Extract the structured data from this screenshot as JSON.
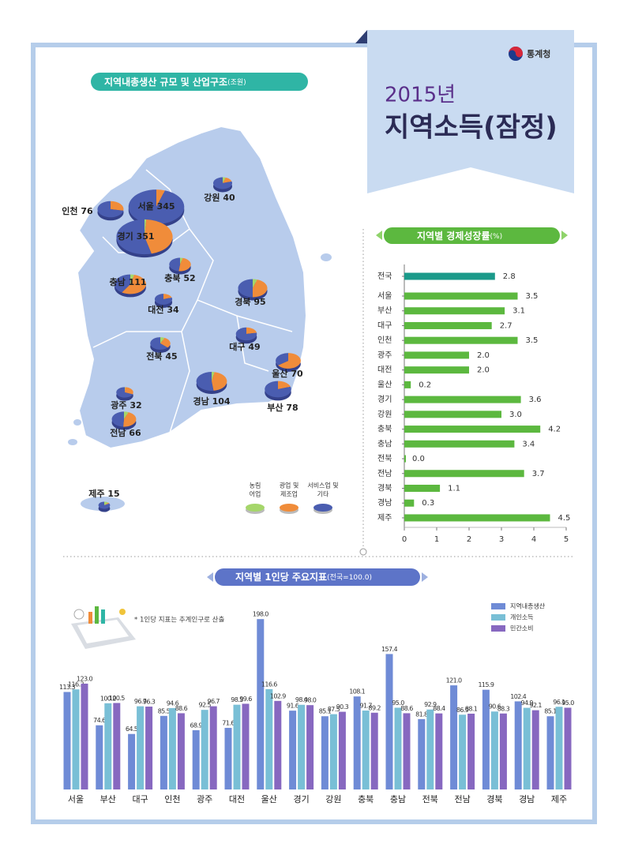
{
  "header": {
    "logo": "통계청",
    "year": "2015년",
    "title": "지역소득(잠정)"
  },
  "chart_data": [
    {
      "type": "pie-map",
      "title": "지역내총생산 규모 및 산업구조",
      "unit": "(조원)",
      "industries": [
        {
          "name": [
            "농림",
            "어업"
          ],
          "color": "#a5d66a"
        },
        {
          "name": [
            "광업 및",
            "제조업"
          ],
          "color": "#f08c3a"
        },
        {
          "name": [
            "서비스업 및",
            "기타"
          ],
          "color": "#4a5db0"
        }
      ],
      "regions": [
        {
          "name": "서울",
          "value": 345,
          "shares": [
            0,
            5,
            95
          ]
        },
        {
          "name": "경기",
          "value": 351,
          "shares": [
            1,
            45,
            54
          ]
        },
        {
          "name": "인천",
          "value": 76,
          "shares": [
            0,
            28,
            72
          ]
        },
        {
          "name": "강원",
          "value": 40,
          "shares": [
            5,
            15,
            80
          ]
        },
        {
          "name": "충북",
          "value": 52,
          "shares": [
            4,
            48,
            48
          ]
        },
        {
          "name": "충남",
          "value": 111,
          "shares": [
            4,
            55,
            41
          ]
        },
        {
          "name": "대전",
          "value": 34,
          "shares": [
            0,
            20,
            80
          ]
        },
        {
          "name": "경북",
          "value": 95,
          "shares": [
            5,
            45,
            50
          ]
        },
        {
          "name": "대구",
          "value": 49,
          "shares": [
            0,
            22,
            78
          ]
        },
        {
          "name": "전북",
          "value": 45,
          "shares": [
            7,
            30,
            63
          ]
        },
        {
          "name": "울산",
          "value": 70,
          "shares": [
            0,
            65,
            35
          ]
        },
        {
          "name": "부산",
          "value": 78,
          "shares": [
            0,
            20,
            80
          ]
        },
        {
          "name": "경남",
          "value": 104,
          "shares": [
            3,
            45,
            52
          ]
        },
        {
          "name": "광주",
          "value": 32,
          "shares": [
            1,
            30,
            69
          ]
        },
        {
          "name": "전남",
          "value": 66,
          "shares": [
            6,
            45,
            49
          ]
        },
        {
          "name": "제주",
          "value": 15,
          "shares": [
            12,
            5,
            83
          ]
        }
      ]
    },
    {
      "type": "bar",
      "orientation": "horizontal",
      "title": "지역별 경제성장률",
      "unit": "(%)",
      "categories": [
        "전국",
        "서울",
        "부산",
        "대구",
        "인천",
        "광주",
        "대전",
        "울산",
        "경기",
        "강원",
        "충북",
        "충남",
        "전북",
        "전남",
        "경북",
        "경남",
        "제주"
      ],
      "values": [
        2.8,
        3.5,
        3.1,
        2.7,
        3.5,
        2.0,
        2.0,
        0.2,
        3.6,
        3.0,
        4.2,
        3.4,
        0.0,
        3.7,
        1.1,
        0.3,
        4.5
      ],
      "value_labels": [
        "2.8",
        "3.5",
        "3.1",
        "2.7",
        "3.5",
        "2.0",
        "2.0",
        "0.2",
        "3.6",
        "3.0",
        "4.2",
        "3.4",
        "0.0",
        "3.7",
        "1.1",
        "0.3",
        "4.5"
      ],
      "colors": [
        "#1a9a8a",
        "#5cb83f",
        "#5cb83f",
        "#5cb83f",
        "#5cb83f",
        "#5cb83f",
        "#5cb83f",
        "#5cb83f",
        "#5cb83f",
        "#5cb83f",
        "#5cb83f",
        "#5cb83f",
        "#5cb83f",
        "#5cb83f",
        "#5cb83f",
        "#5cb83f",
        "#5cb83f"
      ],
      "xlim": [
        0,
        5
      ],
      "xticks": [
        0,
        1,
        2,
        3,
        4,
        5
      ]
    },
    {
      "type": "grouped-bar",
      "title": "지역별 1인당 주요지표",
      "unit": "(전국=100.0)",
      "note": "* 1인당 지표는 추계인구로 산출",
      "categories": [
        "서울",
        "부산",
        "대구",
        "인천",
        "광주",
        "대전",
        "울산",
        "경기",
        "강원",
        "충북",
        "충남",
        "전북",
        "전남",
        "경북",
        "경남",
        "제주"
      ],
      "series": [
        {
          "name": "지역내총생산",
          "color": "#6f8bd6",
          "values": [
            113.3,
            74.6,
            64.5,
            85.5,
            68.9,
            71.6,
            198.0,
            91.6,
            85.1,
            108.1,
            157.4,
            81.8,
            121.0,
            115.9,
            102.4,
            85.1
          ],
          "value_labels": [
            "113.3",
            "74.6",
            "64.5",
            "85.5",
            "68.9",
            "71.6",
            "198.0",
            "91.6",
            "85.1",
            "108.1",
            "157.4",
            "81.8",
            "121.0",
            "115.9",
            "102.4",
            "85.1"
          ]
        },
        {
          "name": "개인소득",
          "color": "#79bfd6",
          "values": [
            116.3,
            100.2,
            96.7,
            94.6,
            92.5,
            98.5,
            116.6,
            98.4,
            87.5,
            91.7,
            95.0,
            92.9,
            86.9,
            90.6,
            94.9,
            96.1
          ],
          "value_labels": [
            "116.3",
            "100.2",
            "96.7",
            "94.6",
            "92.5",
            "98.5",
            "116.6",
            "98.4",
            "87.5",
            "91.7",
            "95.0",
            "92.9",
            "86.9",
            "90.6",
            "94.9",
            "96.1"
          ]
        },
        {
          "name": "민간소비",
          "color": "#8768c0",
          "values": [
            123.0,
            100.5,
            96.3,
            88.6,
            96.7,
            99.6,
            102.9,
            98.0,
            90.3,
            89.2,
            88.6,
            88.4,
            88.1,
            88.3,
            92.1,
            95.0
          ],
          "value_labels": [
            "123.0",
            "100.5",
            "96.3",
            "88.6",
            "96.7",
            "99.6",
            "102.9",
            "98.0",
            "90.3",
            "89.2",
            "88.6",
            "88.4",
            "88.1",
            "88.3",
            "92.1",
            "95.0"
          ]
        }
      ]
    }
  ]
}
